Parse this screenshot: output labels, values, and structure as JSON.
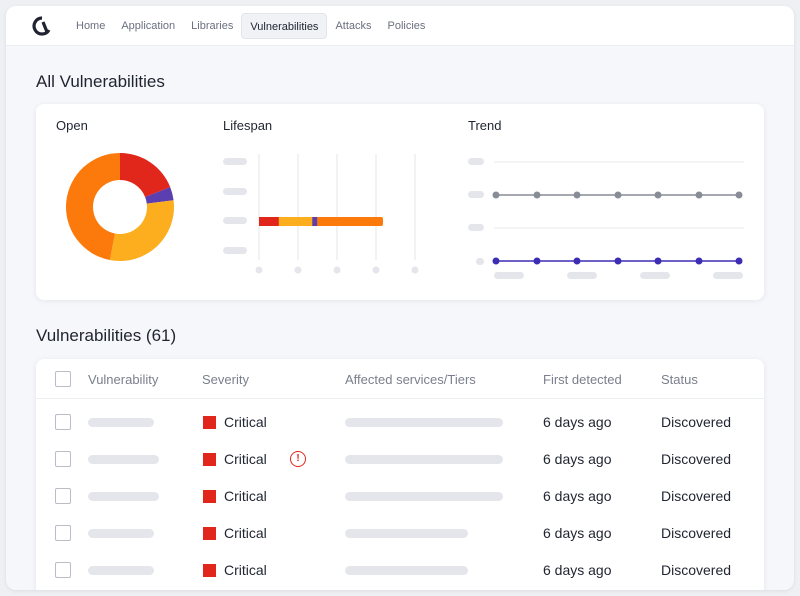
{
  "nav": {
    "tabs": [
      "Home",
      "Application",
      "Libraries",
      "Vulnerabilities",
      "Attacks",
      "Policies"
    ],
    "active": "Vulnerabilities"
  },
  "page_title": "All Vulnerabilities",
  "summary": {
    "open_label": "Open",
    "lifespan_label": "Lifespan",
    "trend_label": "Trend",
    "donut": {
      "segments": [
        {
          "color": "#e1261c",
          "value": 19
        },
        {
          "color": "#5b3fb0",
          "value": 4
        },
        {
          "color": "#fcae1e",
          "value": 30
        },
        {
          "color": "#fc7a0c",
          "value": 47
        }
      ]
    },
    "lifespan_bar": {
      "segments": [
        {
          "color": "#e1261c",
          "value": 16
        },
        {
          "color": "#fcae1e",
          "value": 27
        },
        {
          "color": "#5b3fb0",
          "value": 4
        },
        {
          "color": "#fc7a0c",
          "value": 53
        }
      ]
    },
    "trend": {
      "series": [
        {
          "color": "#888c96",
          "values": [
            1,
            1,
            1,
            1,
            1,
            1,
            1
          ]
        },
        {
          "color": "#3d2db5",
          "values": [
            0,
            0,
            0,
            0,
            0,
            0,
            0
          ]
        }
      ]
    }
  },
  "vulnerabilities": {
    "title": "Vulnerabilities (61)",
    "headers": {
      "vulnerability": "Vulnerability",
      "severity": "Severity",
      "affected": "Affected services/Tiers",
      "first_detected": "First detected",
      "status": "Status"
    },
    "rows": [
      {
        "severity": "Critical",
        "warning": false,
        "first_detected": "6 days ago",
        "status": "Discovered"
      },
      {
        "severity": "Critical",
        "warning": true,
        "first_detected": "6 days ago",
        "status": "Discovered"
      },
      {
        "severity": "Critical",
        "warning": false,
        "first_detected": "6 days ago",
        "status": "Discovered"
      },
      {
        "severity": "Critical",
        "warning": false,
        "first_detected": "6 days ago",
        "status": "Discovered"
      },
      {
        "severity": "Critical",
        "warning": false,
        "first_detected": "6 days ago",
        "status": "Discovered"
      }
    ],
    "warning_glyph": "!"
  },
  "colors": {
    "critical": "#e1261c",
    "accent_purple": "#3d2db5"
  }
}
